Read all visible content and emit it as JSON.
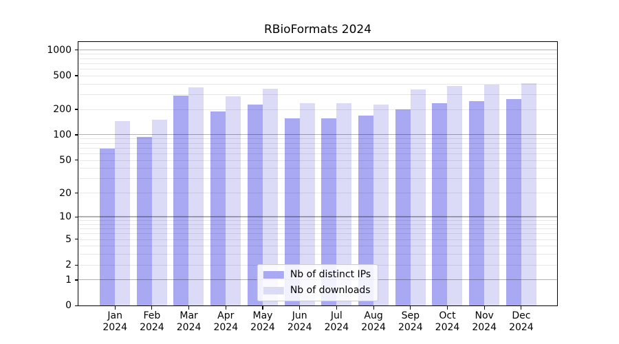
{
  "chart_data": {
    "type": "bar",
    "title": "RBioFormats 2024",
    "categories": [
      "Jan",
      "Feb",
      "Mar",
      "Apr",
      "May",
      "Jun",
      "Jul",
      "Aug",
      "Sep",
      "Oct",
      "Nov",
      "Dec"
    ],
    "category_year": "2024",
    "series": [
      {
        "name": "Nb of distinct IPs",
        "color": "#a8a8f3",
        "values": [
          68,
          95,
          290,
          190,
          227,
          157,
          155,
          170,
          198,
          238,
          252,
          264
        ]
      },
      {
        "name": "Nb of downloads",
        "color": "#dbdbf8",
        "values": [
          145,
          152,
          365,
          287,
          347,
          236,
          234,
          229,
          340,
          377,
          391,
          406
        ]
      }
    ],
    "yscale": "log1p",
    "yticks": [
      0,
      1,
      2,
      5,
      10,
      20,
      50,
      100,
      200,
      500,
      1000
    ],
    "ylim": [
      0,
      1240
    ],
    "grid": "both",
    "legend_position": "lower center"
  },
  "colors": {
    "bar_ips": "#a8a8f3",
    "bar_downloads": "#dbdbf8",
    "grid_major": "rgba(0,0,0,0.31)",
    "grid_minor": "rgba(0,0,0,0.095)",
    "axis": "#000000",
    "legend_background": "rgba(255,255,255,0.85)",
    "legend_border": "#cccccc",
    "title_text": "#000000"
  }
}
